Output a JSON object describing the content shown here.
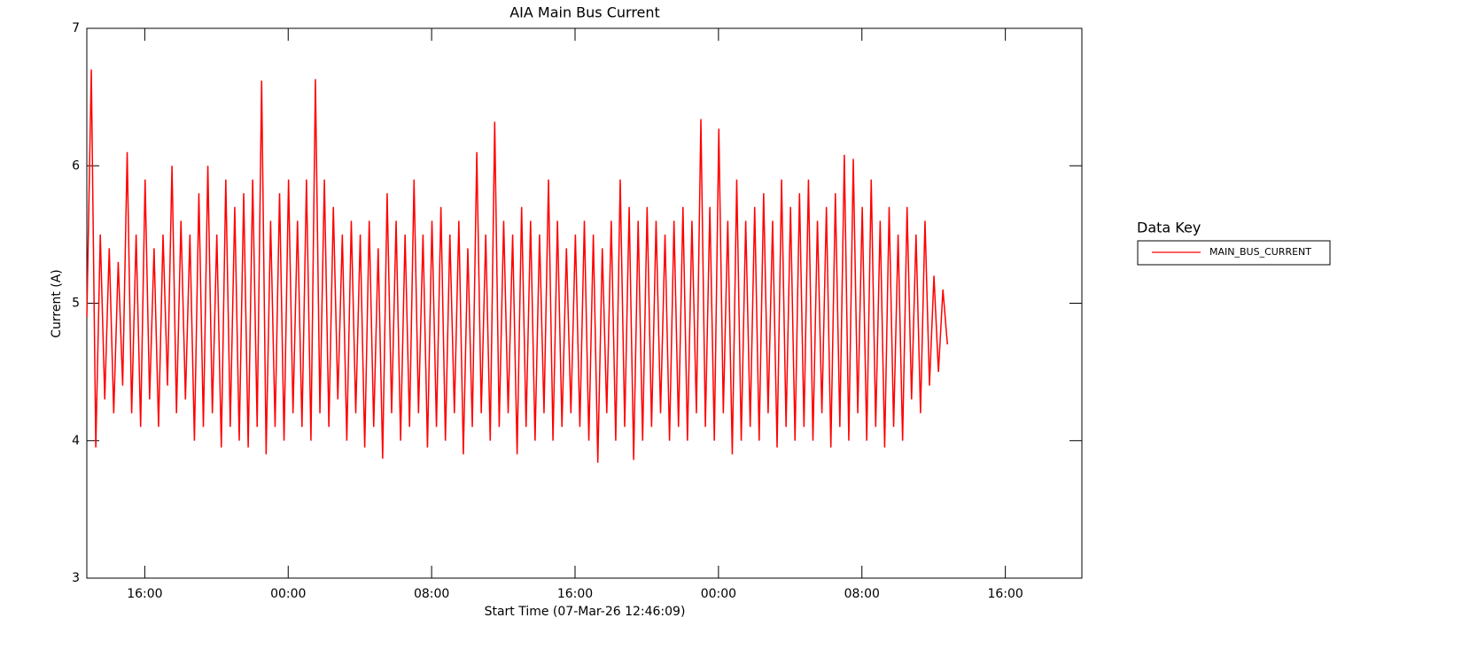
{
  "chart_data": {
    "type": "line",
    "title": "AIA Main Bus Current",
    "xlabel": "Start Time (07-Mar-26 12:46:09)",
    "ylabel": "Current (A)",
    "legend_title": "Data Key",
    "legend_position": "right",
    "xlim": [
      0,
      55.5
    ],
    "xticks": [
      {
        "value": 3.231,
        "label": "16:00"
      },
      {
        "value": 11.231,
        "label": "00:00"
      },
      {
        "value": 19.231,
        "label": "08:00"
      },
      {
        "value": 27.231,
        "label": "16:00"
      },
      {
        "value": 35.231,
        "label": "00:00"
      },
      {
        "value": 43.231,
        "label": "08:00"
      },
      {
        "value": 51.231,
        "label": "16:00"
      }
    ],
    "ylim": [
      3,
      7
    ],
    "yticks": [
      3,
      4,
      5,
      6,
      7
    ],
    "x": [
      0,
      0.25,
      0.5,
      0.75,
      1,
      1.25,
      1.5,
      1.75,
      2,
      2.25,
      2.5,
      2.75,
      3,
      3.25,
      3.5,
      3.75,
      4,
      4.25,
      4.5,
      4.75,
      5,
      5.25,
      5.5,
      5.75,
      6,
      6.25,
      6.5,
      6.75,
      7,
      7.25,
      7.5,
      7.75,
      8,
      8.25,
      8.5,
      8.75,
      9,
      9.25,
      9.5,
      9.75,
      10,
      10.25,
      10.5,
      10.75,
      11,
      11.25,
      11.5,
      11.75,
      12,
      12.25,
      12.5,
      12.75,
      13,
      13.25,
      13.5,
      13.75,
      14,
      14.25,
      14.5,
      14.75,
      15,
      15.25,
      15.5,
      15.75,
      16,
      16.25,
      16.5,
      16.75,
      17,
      17.25,
      17.5,
      17.75,
      18,
      18.25,
      18.5,
      18.75,
      19,
      19.25,
      19.5,
      19.75,
      20,
      20.25,
      20.5,
      20.75,
      21,
      21.25,
      21.5,
      21.75,
      22,
      22.25,
      22.5,
      22.75,
      23,
      23.25,
      23.5,
      23.75,
      24,
      24.25,
      24.5,
      24.75,
      25,
      25.25,
      25.5,
      25.75,
      26,
      26.25,
      26.5,
      26.75,
      27,
      27.25,
      27.5,
      27.75,
      28,
      28.25,
      28.5,
      28.75,
      29,
      29.25,
      29.5,
      29.75,
      30,
      30.25,
      30.5,
      30.75,
      31,
      31.25,
      31.5,
      31.75,
      32,
      32.25,
      32.5,
      32.75,
      33,
      33.25,
      33.5,
      33.75,
      34,
      34.25,
      34.5,
      34.75,
      35,
      35.25,
      35.5,
      35.75,
      36,
      36.25,
      36.5,
      36.75,
      37,
      37.25,
      37.5,
      37.75,
      38,
      38.25,
      38.5,
      38.75,
      39,
      39.25,
      39.5,
      39.75,
      40,
      40.25,
      40.5,
      40.75,
      41,
      41.25,
      41.5,
      41.75,
      42,
      42.25,
      42.5,
      42.75,
      43,
      43.25,
      43.5,
      43.75,
      44,
      44.25,
      44.5,
      44.75,
      45,
      45.25,
      45.5,
      45.75,
      46,
      46.25,
      46.5,
      46.75,
      47,
      47.25,
      47.5,
      47.75,
      48
    ],
    "series": [
      {
        "name": "MAIN_BUS_CURRENT",
        "color": "#ff0000",
        "values": [
          4.9,
          6.7,
          3.95,
          5.5,
          4.3,
          5.4,
          4.2,
          5.3,
          4.4,
          6.1,
          4.2,
          5.5,
          4.1,
          5.9,
          4.3,
          5.4,
          4.1,
          5.5,
          4.4,
          6.0,
          4.2,
          5.6,
          4.3,
          5.5,
          4.0,
          5.8,
          4.1,
          6.0,
          4.2,
          5.5,
          3.95,
          5.9,
          4.1,
          5.7,
          4.0,
          5.8,
          3.95,
          5.9,
          4.1,
          6.62,
          3.9,
          5.6,
          4.1,
          5.8,
          4.0,
          5.9,
          4.2,
          5.6,
          4.1,
          5.9,
          4.0,
          6.63,
          4.2,
          5.9,
          4.1,
          5.7,
          4.3,
          5.5,
          4.0,
          5.6,
          4.2,
          5.5,
          3.95,
          5.6,
          4.1,
          5.4,
          3.87,
          5.8,
          4.2,
          5.6,
          4.0,
          5.5,
          4.1,
          5.9,
          4.2,
          5.5,
          3.95,
          5.6,
          4.1,
          5.7,
          4.0,
          5.5,
          4.2,
          5.6,
          3.9,
          5.4,
          4.1,
          6.1,
          4.2,
          5.5,
          4.0,
          6.32,
          4.1,
          5.6,
          4.2,
          5.5,
          3.9,
          5.7,
          4.1,
          5.6,
          4.0,
          5.5,
          4.2,
          5.9,
          4.0,
          5.6,
          4.1,
          5.4,
          4.2,
          5.5,
          4.1,
          5.6,
          4.0,
          5.5,
          3.84,
          5.4,
          4.2,
          5.6,
          4.0,
          5.9,
          4.1,
          5.7,
          3.86,
          5.6,
          4.0,
          5.7,
          4.1,
          5.6,
          4.2,
          5.5,
          4.0,
          5.6,
          4.1,
          5.7,
          4.0,
          5.6,
          4.2,
          6.34,
          4.1,
          5.7,
          4.0,
          6.27,
          4.2,
          5.6,
          3.9,
          5.9,
          4.0,
          5.6,
          4.1,
          5.7,
          4.0,
          5.8,
          4.2,
          5.6,
          3.95,
          5.9,
          4.1,
          5.7,
          4.0,
          5.8,
          4.1,
          5.9,
          4.0,
          5.6,
          4.2,
          5.7,
          3.95,
          5.8,
          4.1,
          6.08,
          4.0,
          6.05,
          4.2,
          5.7,
          4.0,
          5.9,
          4.1,
          5.6,
          3.95,
          5.7,
          4.1,
          5.5,
          4.0,
          5.7,
          4.3,
          5.5,
          4.2,
          5.6,
          4.4,
          5.2,
          4.5,
          5.1,
          4.7
        ]
      }
    ]
  }
}
